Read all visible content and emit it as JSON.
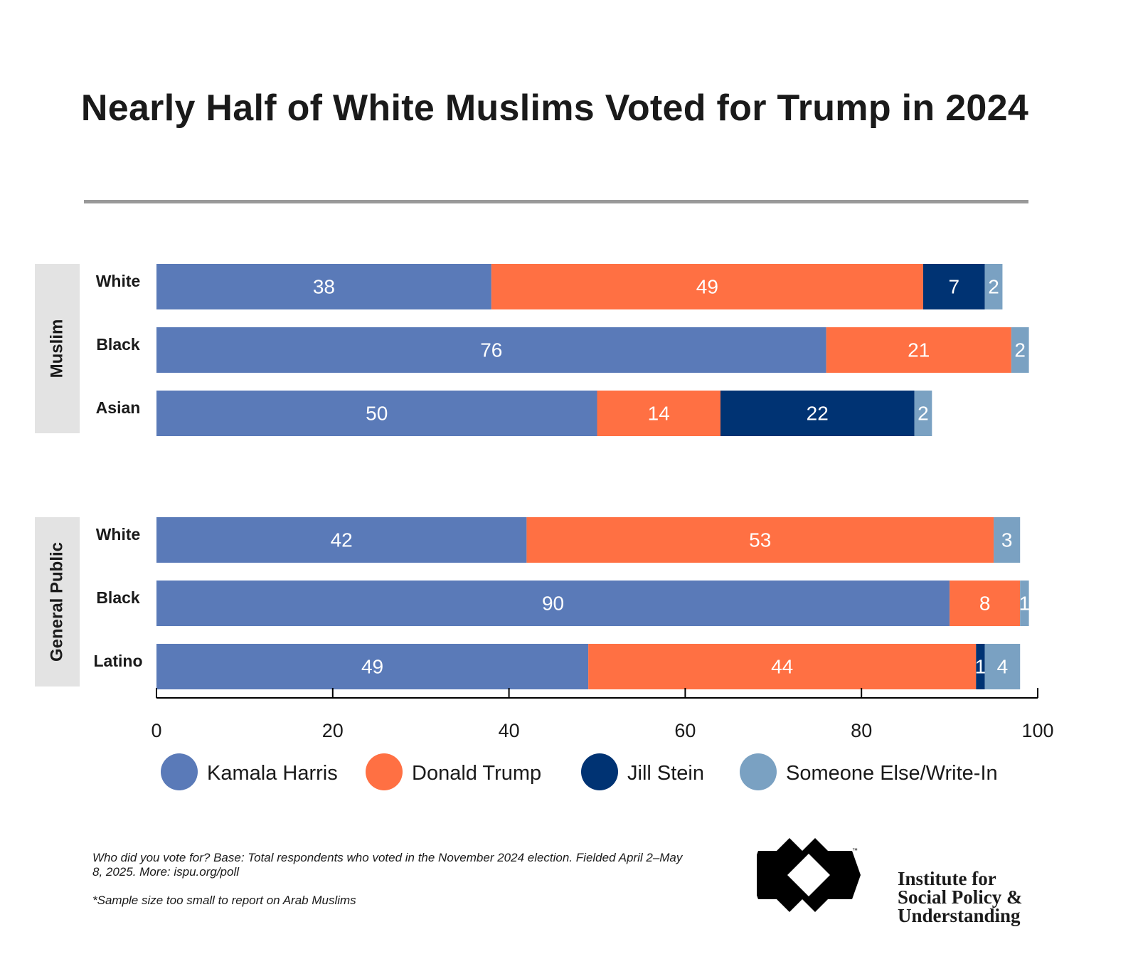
{
  "chart_data": {
    "type": "bar",
    "orientation": "horizontal",
    "stacked": true,
    "title": "Nearly Half of White Muslims Voted for Trump in 2024",
    "xlim": [
      0,
      100
    ],
    "xticks": [
      0,
      20,
      40,
      60,
      80,
      100
    ],
    "legend_position": "bottom",
    "series": [
      {
        "name": "Kamala Harris",
        "color": "#5a7ab8"
      },
      {
        "name": "Donald Trump",
        "color": "#ff7043"
      },
      {
        "name": "Jill Stein",
        "color": "#003373"
      },
      {
        "name": "Someone Else/Write-In",
        "color": "#7aa1c2"
      }
    ],
    "groups": [
      {
        "name": "Muslim",
        "rows": [
          {
            "label": "White",
            "values": [
              38,
              49,
              7,
              2
            ]
          },
          {
            "label": "Black",
            "values": [
              76,
              21,
              0,
              2
            ]
          },
          {
            "label": "Asian",
            "values": [
              50,
              14,
              22,
              2
            ]
          }
        ]
      },
      {
        "name": "General Public",
        "rows": [
          {
            "label": "White",
            "values": [
              42,
              53,
              0,
              3
            ]
          },
          {
            "label": "Black",
            "values": [
              90,
              8,
              0,
              1
            ]
          },
          {
            "label": "Latino",
            "values": [
              49,
              44,
              1,
              4
            ]
          }
        ]
      }
    ]
  },
  "footnote": {
    "question": "Who did you vote for? Base: Total respondents who voted in the November 2024 election. Fielded April 2–May 8, 2025. More: ispu.org/poll",
    "note": "*Sample size too small to report on Arab Muslims"
  },
  "logo": {
    "line1": "Institute for",
    "line2": "Social Policy &",
    "line3": "Understanding",
    "tm": "™"
  }
}
